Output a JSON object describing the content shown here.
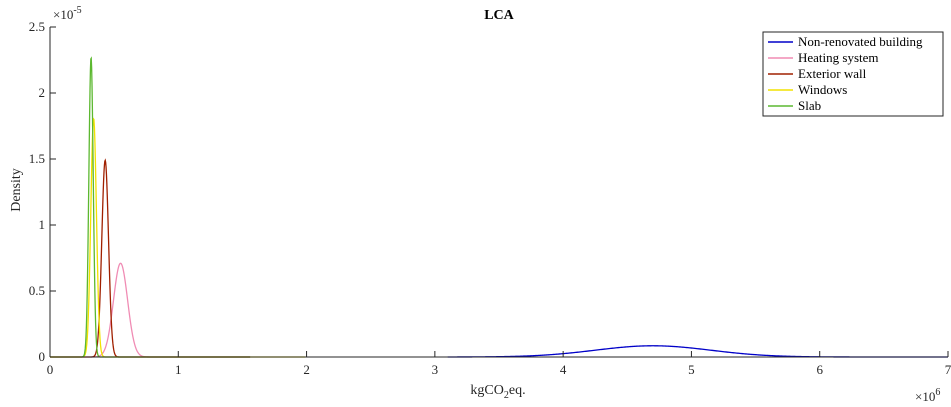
{
  "chart_data": {
    "type": "line",
    "title": "LCA",
    "xlabel": "kgCO2eq.",
    "xlabel_parts": {
      "pre": "kgCO",
      "sub": "2",
      "post": "eq."
    },
    "ylabel": "Density",
    "xlim": [
      0,
      7000000
    ],
    "ylim": [
      0,
      2.5e-05
    ],
    "x_ticks": [
      0,
      1,
      2,
      3,
      4,
      5,
      6,
      7
    ],
    "y_ticks": [
      "0",
      "0.5",
      "1",
      "1.5",
      "2",
      "2.5"
    ],
    "x_exponent": {
      "base": "×10",
      "power": "6"
    },
    "y_exponent": {
      "base": "×10",
      "power": "-5"
    },
    "grid": false,
    "legend_position": "top-right",
    "series": [
      {
        "name": "Non-renovated building",
        "color": "#0000c8",
        "mean": 4700000,
        "sd": 450000,
        "peak": 8.5e-07,
        "range": [
          3100000,
          7000000
        ]
      },
      {
        "name": "Heating system",
        "color": "#f08cb4",
        "mean": 550000,
        "sd": 55000,
        "peak": 7.1e-06,
        "range": [
          0,
          1560000
        ]
      },
      {
        "name": "Exterior wall",
        "color": "#a02000",
        "mean": 430000,
        "sd": 26000,
        "peak": 1.49e-05,
        "range": [
          0,
          1560000
        ]
      },
      {
        "name": "Windows",
        "color": "#f2e200",
        "mean": 340000,
        "sd": 22000,
        "peak": 1.81e-05,
        "range": [
          0,
          1990000
        ]
      },
      {
        "name": "Slab",
        "color": "#5cb830",
        "mean": 320000,
        "sd": 17000,
        "peak": 2.27e-05,
        "range": [
          0,
          1560000
        ]
      }
    ]
  }
}
